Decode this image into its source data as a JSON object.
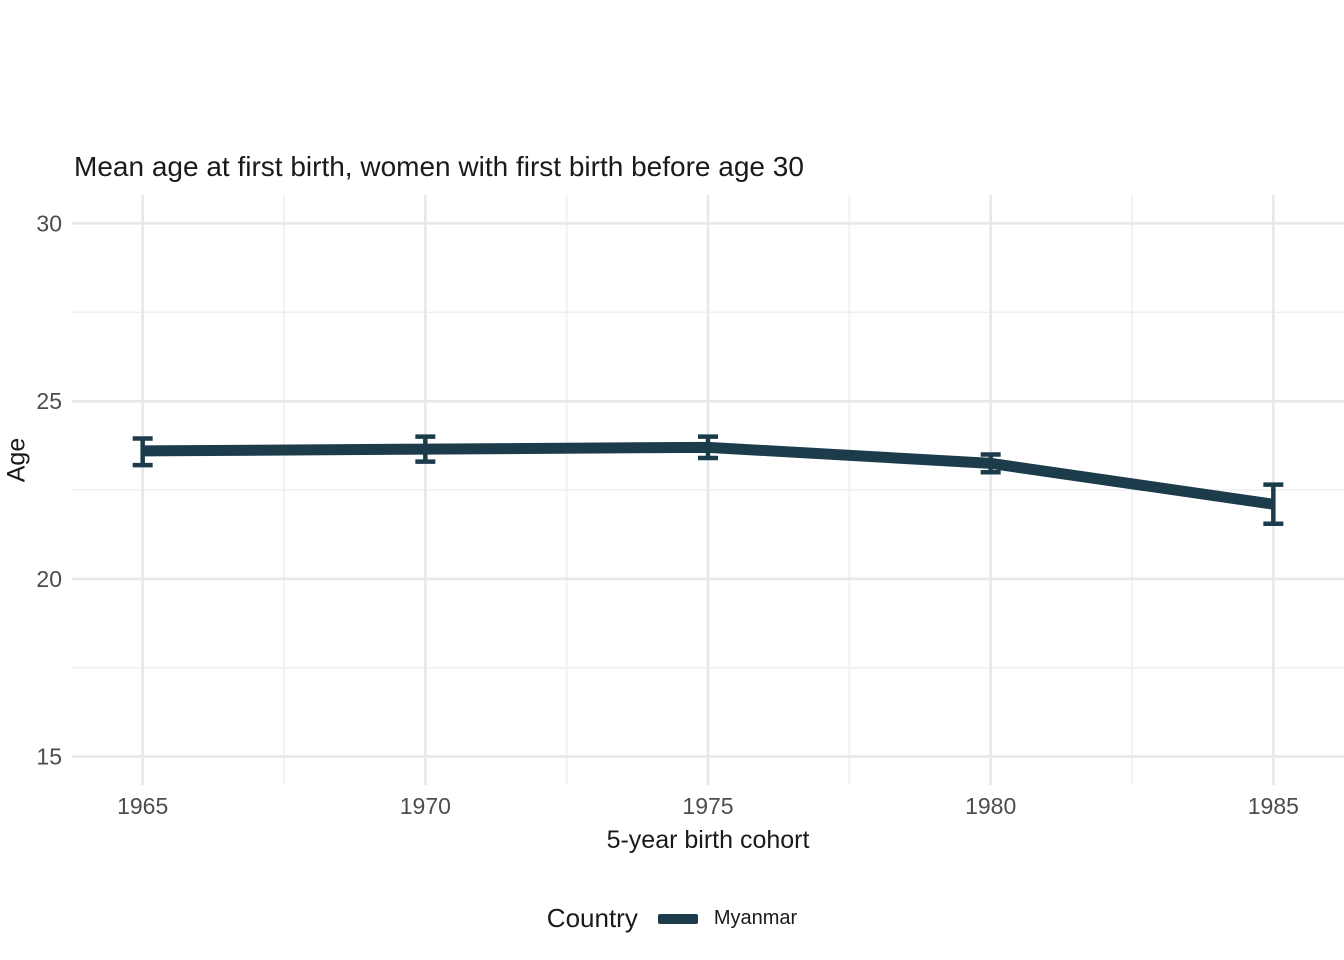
{
  "colors": {
    "series": "#1C3C4B",
    "grid_major": "#E8E8E8",
    "grid_minor": "#EFEFEF",
    "tick_label": "#4D4D4D",
    "text": "#1A1A1A",
    "background": "#FFFFFF"
  },
  "legend": {
    "title": "Country",
    "items": [
      {
        "label": "Myanmar",
        "color": "#1C3C4B"
      }
    ]
  },
  "chart_data": {
    "type": "line",
    "title": "Mean age at first birth, women with first birth before age 30",
    "xlabel": "5-year birth cohort",
    "ylabel": "Age",
    "x": [
      1965,
      1970,
      1975,
      1980,
      1985
    ],
    "x_ticks": [
      1965,
      1970,
      1975,
      1980,
      1985
    ],
    "y_ticks": [
      15,
      20,
      25,
      30
    ],
    "xlim": [
      1963.75,
      1986.25
    ],
    "ylim": [
      14.2,
      30.8
    ],
    "grid": true,
    "error_bars": true,
    "legend_position": "bottom",
    "series": [
      {
        "name": "Myanmar",
        "color": "#1C3C4B",
        "values": [
          23.6,
          23.65,
          23.7,
          23.25,
          22.1
        ],
        "ci_low": [
          23.2,
          23.3,
          23.4,
          23.0,
          21.55
        ],
        "ci_high": [
          23.95,
          24.0,
          24.0,
          23.5,
          22.65
        ]
      }
    ]
  }
}
